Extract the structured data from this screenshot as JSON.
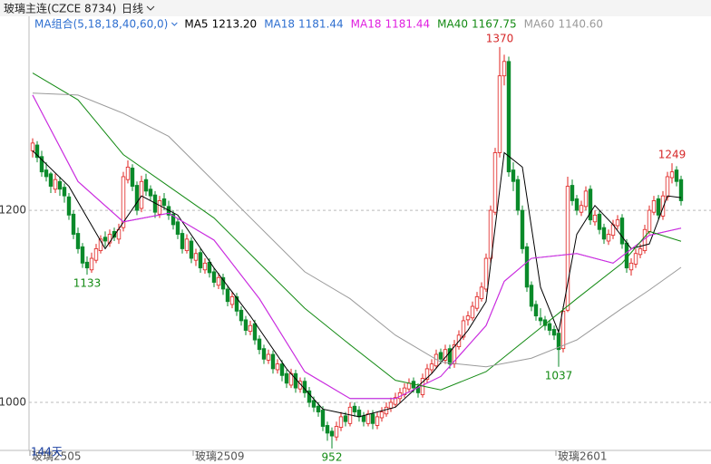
{
  "header": {
    "symbol": "玻璃主连(CZCE 8734)",
    "period": "日线"
  },
  "chart_data": {
    "type": "candlestick",
    "legend_title": "MA组合(5,18,18,40,60,0)",
    "legend_color": "#2e6fd0",
    "up_color": "#e0201e",
    "down_color": "#0a8a2a",
    "ylim": [
      950,
      1402
    ],
    "yticks": [
      1000,
      1200
    ],
    "grid": true,
    "x_labels": [
      {
        "x": 0,
        "label": "玻璃2505"
      },
      {
        "x": 36,
        "label": "玻璃2509"
      },
      {
        "x": 116,
        "label": "玻璃2601"
      }
    ],
    "count_label": "144天",
    "candles": [
      [
        1262,
        1275,
        1255,
        1270
      ],
      [
        1268,
        1272,
        1250,
        1255
      ],
      [
        1256,
        1262,
        1235,
        1240
      ],
      [
        1242,
        1250,
        1230,
        1235
      ],
      [
        1238,
        1240,
        1218,
        1225
      ],
      [
        1222,
        1238,
        1218,
        1232
      ],
      [
        1230,
        1235,
        1215,
        1222
      ],
      [
        1224,
        1228,
        1208,
        1215
      ],
      [
        1214,
        1218,
        1190,
        1195
      ],
      [
        1196,
        1200,
        1170,
        1175
      ],
      [
        1176,
        1182,
        1155,
        1160
      ],
      [
        1162,
        1166,
        1140,
        1145
      ],
      [
        1146,
        1152,
        1133,
        1140
      ],
      [
        1138,
        1156,
        1135,
        1150
      ],
      [
        1148,
        1165,
        1145,
        1160
      ],
      [
        1158,
        1174,
        1155,
        1170
      ],
      [
        1172,
        1178,
        1162,
        1168
      ],
      [
        1166,
        1180,
        1162,
        1175
      ],
      [
        1178,
        1182,
        1168,
        1172
      ],
      [
        1170,
        1186,
        1165,
        1180
      ],
      [
        1182,
        1240,
        1178,
        1235
      ],
      [
        1232,
        1252,
        1228,
        1245
      ],
      [
        1244,
        1248,
        1220,
        1225
      ],
      [
        1226,
        1230,
        1195,
        1200
      ],
      [
        1202,
        1236,
        1198,
        1230
      ],
      [
        1232,
        1238,
        1215,
        1220
      ],
      [
        1222,
        1226,
        1210,
        1215
      ],
      [
        1216,
        1220,
        1192,
        1198
      ],
      [
        1196,
        1215,
        1192,
        1210
      ],
      [
        1212,
        1218,
        1200,
        1205
      ],
      [
        1204,
        1210,
        1190,
        1195
      ],
      [
        1196,
        1200,
        1180,
        1185
      ],
      [
        1188,
        1192,
        1170,
        1175
      ],
      [
        1176,
        1180,
        1155,
        1160
      ],
      [
        1158,
        1175,
        1155,
        1170
      ],
      [
        1168,
        1172,
        1145,
        1150
      ],
      [
        1148,
        1160,
        1142,
        1155
      ],
      [
        1156,
        1160,
        1135,
        1140
      ],
      [
        1138,
        1150,
        1134,
        1145
      ],
      [
        1146,
        1150,
        1130,
        1135
      ],
      [
        1136,
        1140,
        1120,
        1125
      ],
      [
        1122,
        1135,
        1118,
        1130
      ],
      [
        1130,
        1134,
        1112,
        1118
      ],
      [
        1118,
        1122,
        1100,
        1105
      ],
      [
        1102,
        1115,
        1098,
        1110
      ],
      [
        1110,
        1114,
        1090,
        1095
      ],
      [
        1096,
        1100,
        1080,
        1085
      ],
      [
        1086,
        1090,
        1070,
        1075
      ],
      [
        1074,
        1085,
        1070,
        1080
      ],
      [
        1082,
        1086,
        1060,
        1065
      ],
      [
        1066,
        1070,
        1050,
        1055
      ],
      [
        1056,
        1060,
        1040,
        1045
      ],
      [
        1044,
        1055,
        1040,
        1050
      ],
      [
        1050,
        1054,
        1030,
        1035
      ],
      [
        1034,
        1045,
        1030,
        1040
      ],
      [
        1040,
        1044,
        1022,
        1028
      ],
      [
        1030,
        1034,
        1015,
        1020
      ],
      [
        1018,
        1035,
        1015,
        1030
      ],
      [
        1030,
        1034,
        1010,
        1015
      ],
      [
        1014,
        1026,
        1010,
        1022
      ],
      [
        1022,
        1026,
        1005,
        1010
      ],
      [
        1012,
        1016,
        995,
        1000
      ],
      [
        1002,
        1006,
        990,
        995
      ],
      [
        996,
        1000,
        985,
        990
      ],
      [
        992,
        996,
        970,
        975
      ],
      [
        976,
        980,
        960,
        968
      ],
      [
        970,
        974,
        952,
        965
      ],
      [
        964,
        980,
        960,
        975
      ],
      [
        974,
        990,
        970,
        985
      ],
      [
        986,
        990,
        975,
        980
      ],
      [
        978,
        1000,
        975,
        995
      ],
      [
        996,
        1000,
        985,
        990
      ],
      [
        992,
        996,
        980,
        985
      ],
      [
        986,
        990,
        975,
        980
      ],
      [
        978,
        992,
        975,
        988
      ],
      [
        988,
        992,
        972,
        978
      ],
      [
        976,
        990,
        972,
        985
      ],
      [
        984,
        995,
        980,
        990
      ],
      [
        988,
        1000,
        985,
        995
      ],
      [
        994,
        1005,
        990,
        1000
      ],
      [
        998,
        1010,
        995,
        1005
      ],
      [
        1004,
        1015,
        1000,
        1010
      ],
      [
        1008,
        1020,
        1005,
        1015
      ],
      [
        1014,
        1025,
        1010,
        1020
      ],
      [
        1022,
        1026,
        1010,
        1015
      ],
      [
        1016,
        1020,
        1005,
        1010
      ],
      [
        1008,
        1030,
        1005,
        1025
      ],
      [
        1024,
        1040,
        1020,
        1035
      ],
      [
        1034,
        1045,
        1030,
        1040
      ],
      [
        1038,
        1055,
        1035,
        1050
      ],
      [
        1052,
        1056,
        1040,
        1045
      ],
      [
        1044,
        1060,
        1040,
        1055
      ],
      [
        1056,
        1060,
        1035,
        1040
      ],
      [
        1040,
        1065,
        1036,
        1060
      ],
      [
        1058,
        1075,
        1055,
        1070
      ],
      [
        1068,
        1090,
        1065,
        1085
      ],
      [
        1086,
        1095,
        1080,
        1090
      ],
      [
        1088,
        1105,
        1085,
        1100
      ],
      [
        1098,
        1115,
        1095,
        1110
      ],
      [
        1108,
        1125,
        1105,
        1120
      ],
      [
        1118,
        1155,
        1115,
        1150
      ],
      [
        1150,
        1205,
        1145,
        1200
      ],
      [
        1198,
        1265,
        1195,
        1260
      ],
      [
        1260,
        1370,
        1255,
        1340
      ],
      [
        1340,
        1362,
        1330,
        1355
      ],
      [
        1355,
        1360,
        1235,
        1240
      ],
      [
        1242,
        1250,
        1220,
        1230
      ],
      [
        1232,
        1236,
        1195,
        1200
      ],
      [
        1200,
        1205,
        1155,
        1160
      ],
      [
        1162,
        1166,
        1115,
        1120
      ],
      [
        1122,
        1126,
        1095,
        1100
      ],
      [
        1102,
        1106,
        1085,
        1090
      ],
      [
        1088,
        1098,
        1080,
        1085
      ],
      [
        1086,
        1090,
        1075,
        1080
      ],
      [
        1082,
        1086,
        1070,
        1075
      ],
      [
        1076,
        1080,
        1065,
        1070
      ],
      [
        1072,
        1076,
        1037,
        1055
      ],
      [
        1056,
        1100,
        1052,
        1095
      ],
      [
        1096,
        1235,
        1094,
        1225
      ],
      [
        1226,
        1232,
        1205,
        1210
      ],
      [
        1212,
        1216,
        1195,
        1200
      ],
      [
        1198,
        1210,
        1194,
        1205
      ],
      [
        1204,
        1225,
        1200,
        1220
      ],
      [
        1222,
        1226,
        1185,
        1190
      ],
      [
        1188,
        1200,
        1184,
        1195
      ],
      [
        1196,
        1200,
        1175,
        1180
      ],
      [
        1182,
        1186,
        1165,
        1170
      ],
      [
        1168,
        1180,
        1164,
        1175
      ],
      [
        1174,
        1190,
        1170,
        1185
      ],
      [
        1184,
        1195,
        1180,
        1190
      ],
      [
        1192,
        1196,
        1160,
        1165
      ],
      [
        1166,
        1170,
        1135,
        1140
      ],
      [
        1138,
        1150,
        1132,
        1145
      ],
      [
        1144,
        1160,
        1140,
        1155
      ],
      [
        1154,
        1165,
        1150,
        1160
      ],
      [
        1158,
        1185,
        1155,
        1180
      ],
      [
        1178,
        1205,
        1175,
        1200
      ],
      [
        1198,
        1215,
        1195,
        1210
      ],
      [
        1212,
        1216,
        1190,
        1195
      ],
      [
        1194,
        1220,
        1190,
        1215
      ],
      [
        1214,
        1240,
        1210,
        1235
      ],
      [
        1234,
        1249,
        1228,
        1240
      ],
      [
        1242,
        1246,
        1225,
        1230
      ],
      [
        1232,
        1236,
        1205,
        1210
      ]
    ],
    "series": [
      {
        "name": "MA5",
        "color": "#000000",
        "last": {
          "value": 1213.2,
          "label": "1213.20"
        },
        "x": [
          0,
          8,
          16,
          24,
          32,
          40,
          48,
          56,
          64,
          72,
          80,
          88,
          96,
          100,
          104,
          108,
          112,
          116,
          120,
          124,
          128,
          132,
          136,
          140,
          143
        ],
        "values": [
          1262,
          1225,
          1160,
          1215,
          1195,
          1140,
          1090,
          1035,
          993,
          985,
          995,
          1030,
          1075,
          1105,
          1260,
          1245,
          1120,
          1073,
          1175,
          1205,
          1185,
          1160,
          1165,
          1215,
          1213.2
        ]
      },
      {
        "name": "MA18",
        "color": "#2e6fd0",
        "last": {
          "value": 1181.44,
          "label": "1181.44"
        },
        "x": [
          0,
          10,
          20,
          30,
          40,
          50,
          60,
          70,
          80,
          90,
          100,
          104,
          110,
          120,
          128,
          136,
          143
        ],
        "values": [
          1320,
          1230,
          1188,
          1197,
          1169,
          1108,
          1032,
          1004,
          1004,
          1027,
          1080,
          1126,
          1150,
          1155,
          1145,
          1174,
          1181.44
        ]
      },
      {
        "name": "MA18",
        "color": "#e020e0",
        "last": {
          "value": 1181.44,
          "label": "1181.44"
        },
        "x": [
          0,
          10,
          20,
          30,
          40,
          50,
          60,
          70,
          80,
          90,
          100,
          104,
          110,
          120,
          128,
          136,
          143
        ],
        "values": [
          1320,
          1230,
          1188,
          1197,
          1169,
          1108,
          1032,
          1004,
          1004,
          1027,
          1080,
          1126,
          1150,
          1155,
          1145,
          1174,
          1181.44
        ]
      },
      {
        "name": "MA40",
        "color": "#138a13",
        "last": {
          "value": 1167.75,
          "label": "1167.75"
        },
        "x": [
          0,
          10,
          20,
          30,
          40,
          50,
          60,
          70,
          80,
          90,
          100,
          110,
          120,
          130,
          136,
          143
        ],
        "values": [
          1343,
          1315,
          1258,
          1225,
          1192,
          1145,
          1098,
          1060,
          1023,
          1013,
          1032,
          1070,
          1108,
          1145,
          1178,
          1167.75
        ]
      },
      {
        "name": "MA60",
        "color": "#9a9a9a",
        "last": {
          "value": 1140.6,
          "label": "1140.60"
        },
        "x": [
          0,
          10,
          20,
          30,
          40,
          50,
          60,
          70,
          80,
          90,
          100,
          110,
          120,
          130,
          136,
          143
        ],
        "values": [
          1322,
          1320,
          1301,
          1277,
          1230,
          1183,
          1136,
          1108,
          1070,
          1042,
          1037,
          1046,
          1065,
          1098,
          1117,
          1140.6
        ]
      }
    ],
    "annotations": [
      {
        "x": 103,
        "value": 1370,
        "color": "#d62728"
      },
      {
        "x": 12,
        "value": 1133,
        "color": "#138a13"
      },
      {
        "x": 66,
        "value": 952,
        "color": "#138a13"
      },
      {
        "x": 116,
        "value": 1037,
        "color": "#138a13"
      },
      {
        "x": 141,
        "value": 1249,
        "color": "#d62728"
      }
    ]
  }
}
